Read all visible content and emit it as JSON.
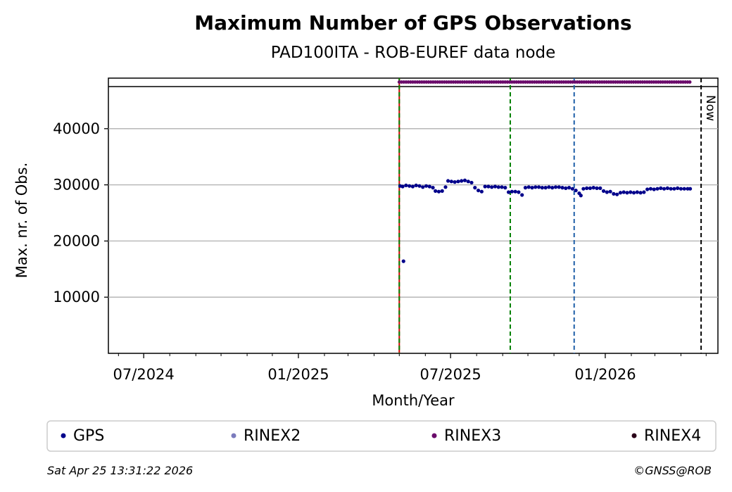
{
  "chart_data": {
    "type": "scatter",
    "title": "Maximum Number of GPS Observations",
    "subtitle": "PAD100ITA - ROB-EUREF data node",
    "xlabel": "Month/Year",
    "ylabel": "Max. nr. of Obs.",
    "xlim": [
      "2024-05-20",
      "2026-05-15"
    ],
    "ylim": [
      0,
      49000
    ],
    "x_ticks": [
      {
        "date": "2024-07-01",
        "label": "07/2024"
      },
      {
        "date": "2025-01-01",
        "label": "01/2025"
      },
      {
        "date": "2025-07-01",
        "label": "07/2025"
      },
      {
        "date": "2026-01-01",
        "label": "01/2026"
      }
    ],
    "y_ticks": [
      10000,
      20000,
      30000,
      40000
    ],
    "grid": "horizontal",
    "upper_band_y": 47500,
    "series": [
      {
        "name": "GPS",
        "color": "#00008b",
        "points": [
          [
            "2025-05-02",
            29800
          ],
          [
            "2025-05-05",
            29700
          ],
          [
            "2025-05-09",
            29900
          ],
          [
            "2025-05-13",
            29800
          ],
          [
            "2025-05-17",
            29700
          ],
          [
            "2025-05-21",
            29900
          ],
          [
            "2025-05-25",
            29800
          ],
          [
            "2025-05-29",
            29600
          ],
          [
            "2025-06-02",
            29800
          ],
          [
            "2025-06-06",
            29700
          ],
          [
            "2025-06-10",
            29500
          ],
          [
            "2025-06-13",
            28900
          ],
          [
            "2025-06-17",
            28800
          ],
          [
            "2025-06-21",
            28900
          ],
          [
            "2025-06-25",
            29600
          ],
          [
            "2025-06-28",
            30700
          ],
          [
            "2025-07-02",
            30600
          ],
          [
            "2025-07-06",
            30500
          ],
          [
            "2025-07-10",
            30600
          ],
          [
            "2025-07-14",
            30700
          ],
          [
            "2025-07-18",
            30800
          ],
          [
            "2025-07-22",
            30600
          ],
          [
            "2025-07-26",
            30400
          ],
          [
            "2025-07-30",
            29500
          ],
          [
            "2025-08-03",
            29000
          ],
          [
            "2025-08-07",
            28800
          ],
          [
            "2025-08-11",
            29700
          ],
          [
            "2025-08-15",
            29700
          ],
          [
            "2025-08-19",
            29600
          ],
          [
            "2025-08-23",
            29700
          ],
          [
            "2025-08-27",
            29600
          ],
          [
            "2025-08-31",
            29600
          ],
          [
            "2025-09-04",
            29500
          ],
          [
            "2025-09-08",
            28700
          ],
          [
            "2025-09-12",
            28800
          ],
          [
            "2025-09-16",
            28800
          ],
          [
            "2025-09-20",
            28700
          ],
          [
            "2025-09-24",
            28200
          ],
          [
            "2025-09-28",
            29500
          ],
          [
            "2025-10-02",
            29600
          ],
          [
            "2025-10-06",
            29500
          ],
          [
            "2025-10-10",
            29600
          ],
          [
            "2025-10-14",
            29600
          ],
          [
            "2025-10-18",
            29500
          ],
          [
            "2025-10-22",
            29500
          ],
          [
            "2025-10-26",
            29600
          ],
          [
            "2025-10-30",
            29500
          ],
          [
            "2025-11-03",
            29600
          ],
          [
            "2025-11-07",
            29600
          ],
          [
            "2025-11-11",
            29500
          ],
          [
            "2025-11-15",
            29400
          ],
          [
            "2025-11-19",
            29500
          ],
          [
            "2025-11-23",
            29300
          ],
          [
            "2025-11-27",
            29000
          ],
          [
            "2025-12-01",
            28500
          ],
          [
            "2025-12-03",
            28100
          ],
          [
            "2025-12-06",
            29300
          ],
          [
            "2025-12-10",
            29400
          ],
          [
            "2025-12-14",
            29400
          ],
          [
            "2025-12-18",
            29500
          ],
          [
            "2025-12-22",
            29400
          ],
          [
            "2025-12-26",
            29400
          ],
          [
            "2025-12-30",
            28900
          ],
          [
            "2026-01-03",
            28700
          ],
          [
            "2026-01-07",
            28800
          ],
          [
            "2026-01-11",
            28400
          ],
          [
            "2026-01-15",
            28300
          ],
          [
            "2026-01-19",
            28600
          ],
          [
            "2026-01-23",
            28700
          ],
          [
            "2026-01-27",
            28600
          ],
          [
            "2026-01-31",
            28700
          ],
          [
            "2026-02-04",
            28600
          ],
          [
            "2026-02-08",
            28700
          ],
          [
            "2026-02-12",
            28600
          ],
          [
            "2026-02-16",
            28700
          ],
          [
            "2026-02-20",
            29200
          ],
          [
            "2026-02-24",
            29300
          ],
          [
            "2026-02-28",
            29200
          ],
          [
            "2026-03-04",
            29300
          ],
          [
            "2026-03-08",
            29400
          ],
          [
            "2026-03-12",
            29300
          ],
          [
            "2026-03-16",
            29400
          ],
          [
            "2026-03-20",
            29300
          ],
          [
            "2026-03-24",
            29300
          ],
          [
            "2026-03-28",
            29400
          ],
          [
            "2026-04-01",
            29300
          ],
          [
            "2026-04-05",
            29300
          ],
          [
            "2026-04-09",
            29300
          ],
          [
            "2026-04-12",
            29300
          ],
          [
            "2025-05-06",
            16400
          ]
        ]
      },
      {
        "name": "RINEX2",
        "color": "#7b7bbd",
        "points": []
      },
      {
        "name": "RINEX3",
        "color": "#6a0a6a",
        "line_range": [
          "2025-05-01",
          "2026-04-12"
        ],
        "value": 48300
      },
      {
        "name": "RINEX4",
        "color": "#2a0018",
        "points": []
      }
    ],
    "vertical_lines": [
      {
        "date": "2025-05-01",
        "color": "#cc0000",
        "style": "solid"
      },
      {
        "date": "2025-05-01",
        "color": "#008000",
        "style": "dashed"
      },
      {
        "date": "2025-09-10",
        "color": "#008000",
        "style": "dashed"
      },
      {
        "date": "2025-11-25",
        "color": "#1f5fa8",
        "style": "dashed"
      },
      {
        "date": "2026-04-25",
        "color": "#000000",
        "style": "dashed",
        "label": "Now"
      }
    ],
    "legend_position": "bottom"
  },
  "footer": {
    "timestamp": "Sat Apr 25 13:31:22 2026",
    "copyright": "©GNSS@ROB"
  }
}
